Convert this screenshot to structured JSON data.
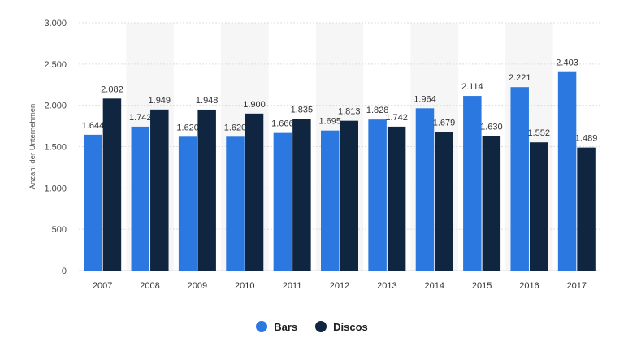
{
  "chart_data": {
    "type": "bar",
    "categories": [
      "2007",
      "2008",
      "2009",
      "2010",
      "2011",
      "2012",
      "2013",
      "2014",
      "2015",
      "2016",
      "2017"
    ],
    "series": [
      {
        "name": "Bars",
        "color": "#2a78e0",
        "values": [
          1644,
          1742,
          1620,
          1620,
          1666,
          1695,
          1828,
          1964,
          2114,
          2221,
          2403
        ],
        "labels": [
          "1.644",
          "1.742",
          "1.620",
          "1.620",
          "1.666",
          "1.695",
          "1.828",
          "1.964",
          "2.114",
          "2.221",
          "2.403"
        ]
      },
      {
        "name": "Discos",
        "color": "#0f2540",
        "values": [
          2082,
          1949,
          1948,
          1900,
          1835,
          1813,
          1742,
          1679,
          1630,
          1552,
          1489
        ],
        "labels": [
          "2.082",
          "1.949",
          "1.948",
          "1.900",
          "1.835",
          "1.813",
          "1.742",
          "1.679",
          "1.630",
          "1.552",
          "1.489"
        ]
      }
    ],
    "ylabel": "Anzahl der Unternehmen",
    "ylim": [
      0,
      3000
    ],
    "yticks": [
      0,
      500,
      1000,
      1500,
      2000,
      2500,
      3000
    ],
    "ytick_labels": [
      "0",
      "500",
      "1.000",
      "1.500",
      "2.000",
      "2.500",
      "3.000"
    ],
    "grid": true,
    "legend_position": "bottom-center"
  }
}
